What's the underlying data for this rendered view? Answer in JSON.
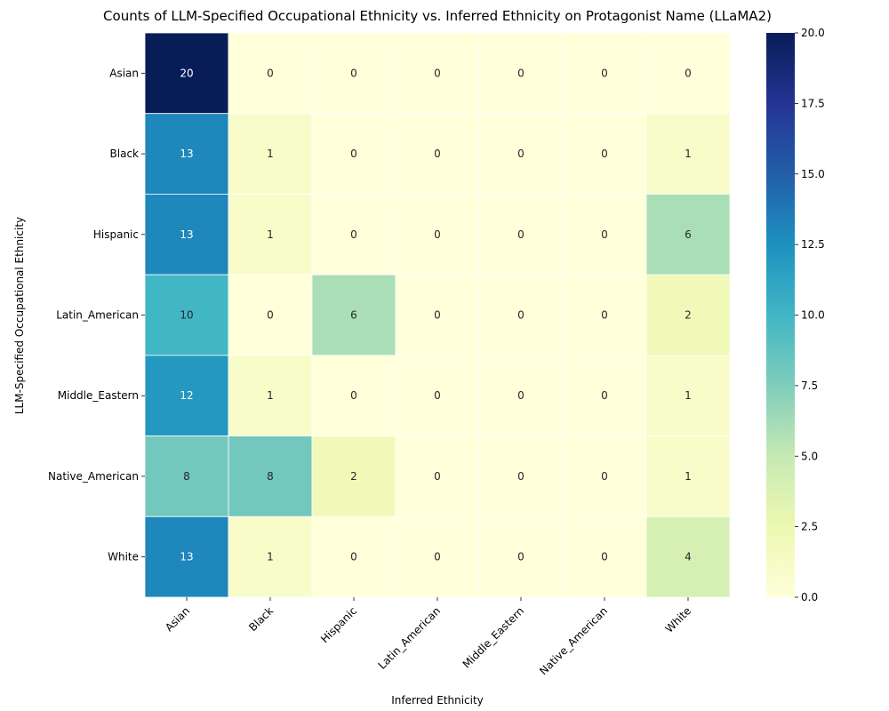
{
  "chart_data": {
    "type": "heatmap",
    "title": "Counts of LLM-Specified Occupational Ethnicity vs. Inferred Ethnicity on Protagonist Name (LLaMA2)",
    "xlabel": "Inferred Ethnicity",
    "ylabel": "LLM-Specified Occupational Ethnicity",
    "x_categories": [
      "Asian",
      "Black",
      "Hispanic",
      "Latin_American",
      "Middle_Eastern",
      "Native_American",
      "White"
    ],
    "y_categories": [
      "Asian",
      "Black",
      "Hispanic",
      "Latin_American",
      "Middle_Eastern",
      "Native_American",
      "White"
    ],
    "values": [
      [
        20,
        0,
        0,
        0,
        0,
        0,
        0
      ],
      [
        13,
        1,
        0,
        0,
        0,
        0,
        1
      ],
      [
        13,
        1,
        0,
        0,
        0,
        0,
        6
      ],
      [
        10,
        0,
        6,
        0,
        0,
        0,
        2
      ],
      [
        12,
        1,
        0,
        0,
        0,
        0,
        1
      ],
      [
        8,
        8,
        2,
        0,
        0,
        0,
        1
      ],
      [
        13,
        1,
        0,
        0,
        0,
        0,
        4
      ]
    ],
    "colormap": "YlGnBu",
    "vmin": 0,
    "vmax": 20,
    "colorbar_ticks": [
      "0.0",
      "2.5",
      "5.0",
      "7.5",
      "10.0",
      "12.5",
      "15.0",
      "17.5",
      "20.0"
    ],
    "colorbar_tick_values": [
      0,
      2.5,
      5,
      7.5,
      10,
      12.5,
      15,
      17.5,
      20
    ]
  }
}
